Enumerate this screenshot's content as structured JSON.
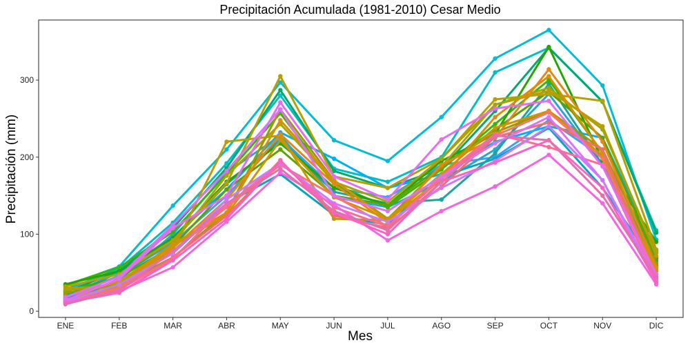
{
  "chart_data": {
    "type": "line",
    "title": "Precipitación Acumulada (1981-2010)  Cesar Medio",
    "xlabel": "Mes",
    "ylabel": "Precipitación  (mm)",
    "categories": [
      "ENE",
      "FEB",
      "MAR",
      "ABR",
      "MAY",
      "JUN",
      "JUL",
      "AGO",
      "SEP",
      "OCT",
      "NOV",
      "DIC"
    ],
    "ylim": [
      -8,
      378
    ],
    "yticks": [
      0,
      100,
      200,
      300
    ],
    "grid": false,
    "legend": "none",
    "series": [
      {
        "color": "#00BCD4",
        "values": [
          33,
          58,
          137,
          210,
          297,
          222,
          195,
          252,
          328,
          365,
          293,
          93
        ]
      },
      {
        "color": "#00BFC4",
        "values": [
          28,
          55,
          115,
          192,
          280,
          185,
          168,
          200,
          310,
          342,
          272,
          105
        ]
      },
      {
        "color": "#00AA6F",
        "values": [
          25,
          52,
          108,
          186,
          287,
          182,
          160,
          185,
          260,
          342,
          272,
          102
        ]
      },
      {
        "color": "#00B0F6",
        "values": [
          20,
          50,
          97,
          158,
          232,
          198,
          160,
          178,
          220,
          240,
          225,
          78
        ]
      },
      {
        "color": "#35A2FF",
        "values": [
          18,
          46,
          89,
          150,
          225,
          160,
          148,
          190,
          200,
          248,
          200,
          60
        ]
      },
      {
        "color": "#24A7D4",
        "values": [
          17,
          40,
          100,
          180,
          228,
          148,
          135,
          168,
          210,
          282,
          190,
          55
        ]
      },
      {
        "color": "#1AA5A0",
        "values": [
          22,
          45,
          92,
          165,
          222,
          155,
          140,
          145,
          205,
          295,
          190,
          65
        ]
      },
      {
        "color": "#00A9B8",
        "values": [
          16,
          38,
          75,
          140,
          178,
          125,
          112,
          175,
          198,
          238,
          160,
          58
        ]
      },
      {
        "color": "#39B600",
        "values": [
          34,
          57,
          103,
          178,
          257,
          165,
          135,
          184,
          243,
          300,
          206,
          70
        ]
      },
      {
        "color": "#24A500",
        "values": [
          35,
          52,
          95,
          168,
          218,
          160,
          138,
          195,
          230,
          343,
          196,
          90
        ]
      },
      {
        "color": "#5BA300",
        "values": [
          26,
          44,
          84,
          158,
          210,
          150,
          138,
          188,
          236,
          285,
          225,
          68
        ]
      },
      {
        "color": "#B79F00",
        "values": [
          32,
          48,
          92,
          166,
          305,
          175,
          160,
          198,
          275,
          282,
          273,
          80
        ]
      },
      {
        "color": "#C09B00",
        "values": [
          30,
          32,
          80,
          220,
          228,
          120,
          118,
          188,
          268,
          286,
          240,
          72
        ]
      },
      {
        "color": "#A3A500",
        "values": [
          27,
          36,
          88,
          176,
          243,
          168,
          142,
          198,
          268,
          290,
          236,
          76
        ]
      },
      {
        "color": "#9C9A00",
        "values": [
          24,
          34,
          70,
          128,
          262,
          170,
          120,
          188,
          232,
          260,
          210,
          62
        ]
      },
      {
        "color": "#E68613",
        "values": [
          15,
          34,
          82,
          145,
          230,
          165,
          115,
          190,
          225,
          314,
          220,
          57
        ]
      },
      {
        "color": "#D89000",
        "values": [
          14,
          32,
          87,
          128,
          248,
          170,
          118,
          172,
          252,
          305,
          205,
          52
        ]
      },
      {
        "color": "#CD9600",
        "values": [
          19,
          39,
          85,
          125,
          222,
          148,
          120,
          178,
          238,
          260,
          202,
          48
        ]
      },
      {
        "color": "#F8766D",
        "values": [
          12,
          30,
          78,
          135,
          190,
          150,
          110,
          172,
          228,
          258,
          198,
          45
        ]
      },
      {
        "color": "#F06E6E",
        "values": [
          13,
          28,
          70,
          124,
          196,
          124,
          108,
          162,
          226,
          245,
          210,
          42
        ]
      },
      {
        "color": "#FF6C91",
        "values": [
          11,
          28,
          68,
          138,
          192,
          135,
          110,
          175,
          230,
          213,
          190,
          40
        ]
      },
      {
        "color": "#E76BF3",
        "values": [
          14,
          42,
          108,
          150,
          271,
          175,
          145,
          223,
          263,
          273,
          188,
          48
        ]
      },
      {
        "color": "#DB72FB",
        "values": [
          18,
          45,
          112,
          182,
          262,
          150,
          130,
          175,
          218,
          252,
          170,
          42
        ]
      },
      {
        "color": "#C77CFF",
        "values": [
          12,
          35,
          75,
          145,
          192,
          140,
          116,
          160,
          195,
          240,
          170,
          37
        ]
      },
      {
        "color": "#F564E3",
        "values": [
          10,
          26,
          57,
          116,
          180,
          138,
          92,
          130,
          162,
          203,
          140,
          35
        ]
      },
      {
        "color": "#FF61C3",
        "values": [
          11,
          24,
          66,
          120,
          195,
          128,
          100,
          168,
          193,
          222,
          160,
          38
        ]
      },
      {
        "color": "#E26FAE",
        "values": [
          9,
          27,
          78,
          140,
          185,
          130,
          105,
          168,
          228,
          222,
          150,
          44
        ]
      }
    ]
  }
}
